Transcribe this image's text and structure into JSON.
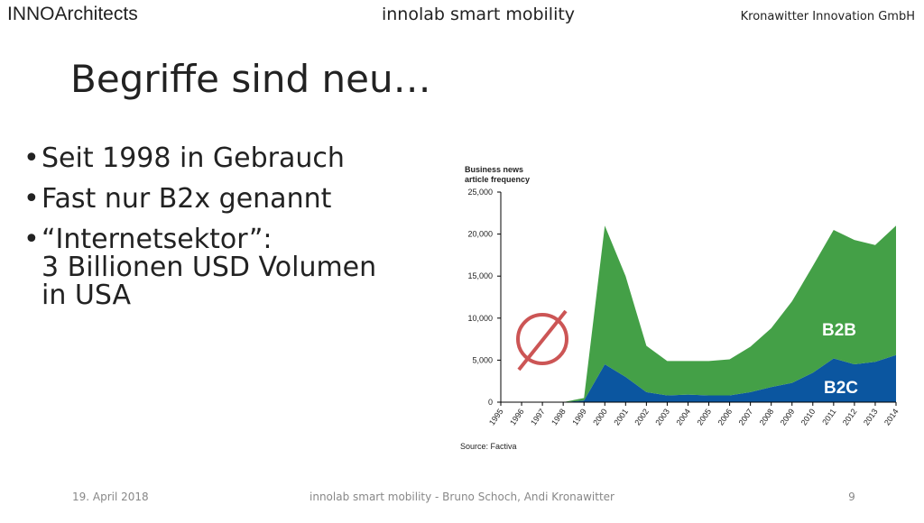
{
  "slide": {
    "logo": "INNOArchitects",
    "header_center": "innolab smart mobility",
    "header_right": "Kronawitter Innovation GmbH",
    "title": "Begriffe sind neu…",
    "bullets": [
      [
        "Seit 1998 in Gebrauch"
      ],
      [
        "Fast nur B2x genannt"
      ],
      [
        "“Internetsektor”:",
        "3 Billionen USD Volumen",
        "in USA"
      ]
    ],
    "footer_date": "19. April 2018",
    "footer_center": "innolab smart mobility - Bruno Schoch, Andi Kronawitter",
    "page_number": "9"
  },
  "chart_data": {
    "type": "stacked_area",
    "y_label": [
      "Business news",
      "article frequency"
    ],
    "source": "Source: Factiva",
    "categories": [
      "1995",
      "1996",
      "1997",
      "1998",
      "1999",
      "2000",
      "2001",
      "2002",
      "2003",
      "2004",
      "2005",
      "2006",
      "2007",
      "2008",
      "2009",
      "2010",
      "2011",
      "2012",
      "2013",
      "2014"
    ],
    "series": [
      {
        "name": "B2C",
        "color": "#0b56a0",
        "values": [
          0,
          0,
          0,
          0,
          200,
          4500,
          3000,
          1200,
          800,
          900,
          800,
          800,
          1200,
          1800,
          2300,
          3500,
          5200,
          4500,
          4800,
          5600
        ]
      },
      {
        "name": "B2B",
        "color": "#44a047",
        "values": [
          0,
          0,
          0,
          0,
          300,
          16500,
          12000,
          5500,
          4100,
          4000,
          4100,
          4300,
          5400,
          7000,
          9700,
          12700,
          15300,
          14800,
          13900,
          15400
        ]
      }
    ],
    "ylim": [
      0,
      25000
    ],
    "yticks": [
      0,
      {
        "value": 5000,
        "label": "5,000"
      },
      {
        "value": 10000,
        "label": "10,000"
      },
      {
        "value": 15000,
        "label": "15,000"
      },
      {
        "value": 20000,
        "label": "20,000"
      },
      {
        "value": 25000,
        "label": "25,000"
      }
    ]
  }
}
